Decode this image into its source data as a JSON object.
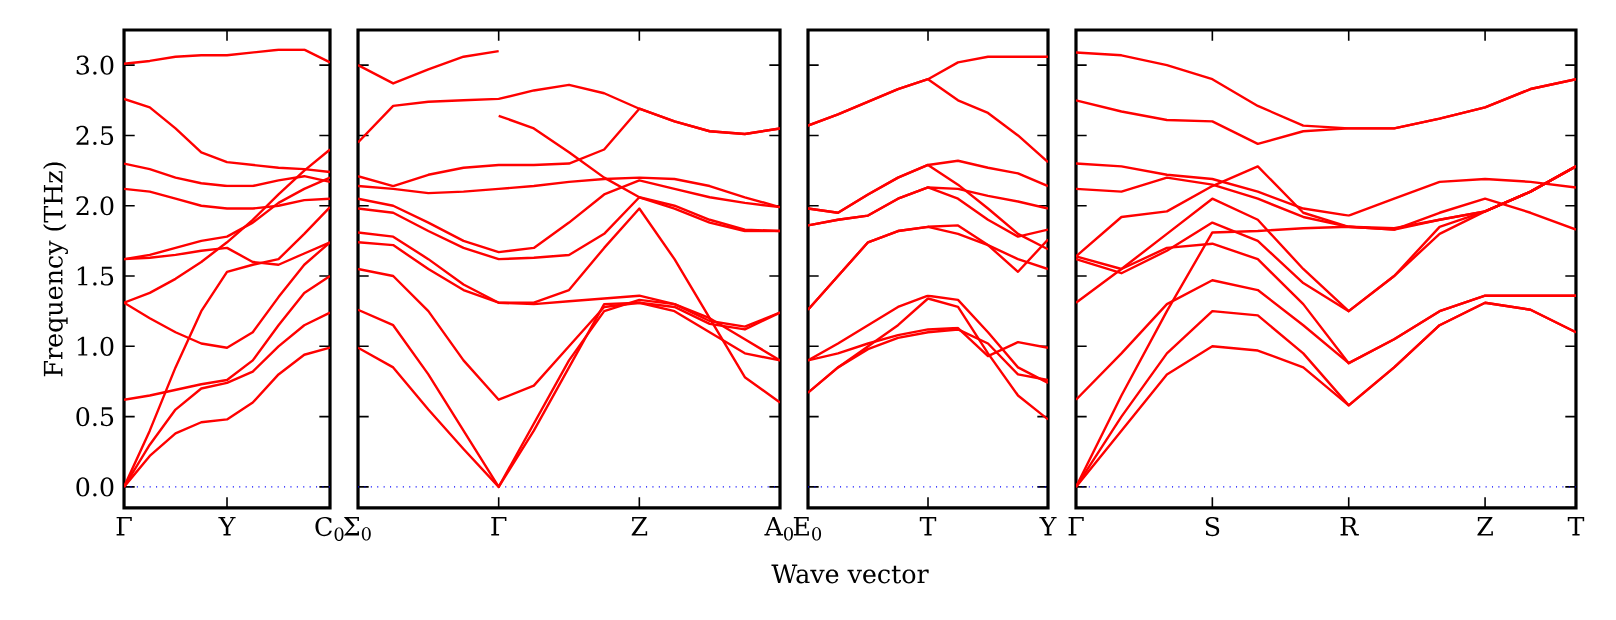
{
  "chart_data": [
    {
      "type": "line",
      "ylabel": "Frequency (THz)",
      "categories": [
        "Γ",
        null,
        null,
        null,
        "Y",
        null,
        null,
        null,
        "C$_{0}$"
      ],
      "ylim": [
        -0.15,
        3.25
      ],
      "yticks": [
        {
          "value": 0,
          "label": "0.0"
        },
        0.5,
        {
          "value": 1,
          "label": "1.0"
        },
        1.5,
        {
          "value": 2,
          "label": "2.0"
        },
        2.5,
        {
          "value": 3,
          "label": "3.0"
        }
      ],
      "ref_lines": [
        {
          "axis": "y",
          "value": 0,
          "color": "#0000ff",
          "line_style": "dotted"
        }
      ],
      "series": [
        {
          "color": "#ff0000",
          "values": [
            3.01,
            3.03,
            3.06,
            3.07,
            3.07,
            3.09,
            3.11,
            3.11,
            3.02
          ]
        },
        {
          "color": "#ff0000",
          "values": [
            2.76,
            2.7,
            2.55,
            2.38,
            2.31,
            2.29,
            2.27,
            2.26,
            2.24
          ]
        },
        {
          "color": "#ff0000",
          "values": [
            2.3,
            2.26,
            2.2,
            2.16,
            2.14,
            2.14,
            2.18,
            2.21,
            2.17
          ]
        },
        {
          "color": "#ff0000",
          "values": [
            2.12,
            2.1,
            2.05,
            2.0,
            1.98,
            1.98,
            2.0,
            2.04,
            2.05
          ]
        },
        {
          "color": "#ff0000",
          "values": [
            1.62,
            1.63,
            1.65,
            1.68,
            1.7,
            1.6,
            1.58,
            1.66,
            1.74
          ]
        },
        {
          "color": "#ff0000",
          "values": [
            1.62,
            1.65,
            1.7,
            1.75,
            1.78,
            1.88,
            2.02,
            2.12,
            2.2
          ]
        },
        {
          "color": "#ff0000",
          "values": [
            1.31,
            1.2,
            1.1,
            1.02,
            0.99,
            1.1,
            1.35,
            1.58,
            1.74
          ]
        },
        {
          "color": "#ff0000",
          "values": [
            1.31,
            1.38,
            1.48,
            1.6,
            1.74,
            1.9,
            2.08,
            2.25,
            2.4
          ]
        },
        {
          "color": "#ff0000",
          "values": [
            0.62,
            0.65,
            0.69,
            0.73,
            0.76,
            0.9,
            1.15,
            1.38,
            1.5
          ]
        },
        {
          "color": "#ff0000",
          "values": [
            0.0,
            0.3,
            0.55,
            0.7,
            0.74,
            0.82,
            1.0,
            1.15,
            1.24
          ]
        },
        {
          "color": "#ff0000",
          "values": [
            0.0,
            0.22,
            0.38,
            0.46,
            0.48,
            0.6,
            0.8,
            0.94,
            0.99
          ]
        },
        {
          "color": "#ff0000",
          "values": [
            0.0,
            0.4,
            0.85,
            1.25,
            1.53,
            1.58,
            1.62,
            1.8,
            1.99
          ]
        }
      ]
    },
    {
      "type": "line",
      "tick_labels": "x",
      "categories": [
        "Σ$_{0}$",
        null,
        null,
        null,
        "Γ",
        null,
        null,
        null,
        "Z",
        null,
        null,
        null,
        "A$_{0}$"
      ],
      "ylim": [
        -0.15,
        3.25
      ],
      "yticks": [
        0,
        0.5,
        1,
        1.5,
        2,
        2.5,
        3
      ],
      "ref_lines": [
        {
          "axis": "y",
          "value": 0,
          "color": "#0000ff",
          "line_style": "dotted"
        }
      ],
      "series": [
        {
          "color": "#ff0000",
          "values": [
            3.0,
            2.87,
            2.97,
            3.06,
            3.1,
            null,
            null,
            null,
            null,
            null,
            null,
            null,
            null
          ]
        },
        {
          "color": "#ff0000",
          "values": [
            null,
            null,
            null,
            null,
            2.64,
            2.55,
            2.38,
            2.2,
            2.06,
            1.98,
            1.88,
            1.82,
            1.82
          ]
        },
        {
          "color": "#ff0000",
          "values": [
            2.45,
            2.71,
            2.74,
            2.75,
            2.76,
            2.82,
            2.86,
            2.8,
            2.69,
            2.6,
            2.53,
            2.51,
            2.55
          ]
        },
        {
          "color": "#ff0000",
          "values": [
            2.21,
            2.14,
            2.22,
            2.27,
            2.29,
            2.29,
            2.3,
            2.4,
            2.69,
            2.6,
            2.53,
            2.51,
            2.55
          ]
        },
        {
          "color": "#ff0000",
          "values": [
            2.14,
            2.12,
            2.09,
            2.1,
            2.12,
            2.14,
            2.17,
            2.19,
            2.2,
            2.19,
            2.14,
            2.06,
            1.99
          ]
        },
        {
          "color": "#ff0000",
          "values": [
            2.05,
            2.0,
            1.88,
            1.75,
            1.67,
            1.7,
            1.88,
            2.08,
            2.18,
            2.12,
            2.06,
            2.02,
            1.99
          ]
        },
        {
          "color": "#ff0000",
          "values": [
            1.98,
            1.95,
            1.82,
            1.7,
            1.62,
            1.63,
            1.65,
            1.8,
            2.06,
            2.0,
            1.9,
            1.83,
            1.82
          ]
        },
        {
          "color": "#ff0000",
          "values": [
            1.74,
            1.72,
            1.55,
            1.4,
            1.31,
            1.31,
            1.4,
            1.7,
            1.98,
            1.62,
            1.2,
            0.78,
            0.6
          ]
        },
        {
          "color": "#ff0000",
          "values": [
            1.81,
            1.78,
            1.62,
            1.44,
            1.31,
            1.3,
            1.32,
            1.34,
            1.36,
            1.3,
            1.18,
            1.14,
            1.24
          ]
        },
        {
          "color": "#ff0000",
          "values": [
            1.55,
            1.5,
            1.25,
            0.9,
            0.62,
            0.72,
            1.0,
            1.28,
            1.31,
            1.25,
            1.1,
            0.95,
            0.9
          ]
        },
        {
          "color": "#ff0000",
          "values": [
            1.26,
            1.15,
            0.8,
            0.4,
            0.0,
            0.45,
            0.9,
            1.25,
            1.33,
            1.3,
            1.2,
            1.05,
            0.9
          ]
        },
        {
          "color": "#ff0000",
          "values": [
            0.99,
            0.85,
            0.55,
            0.27,
            0.0,
            0.4,
            0.85,
            1.3,
            1.31,
            1.28,
            1.16,
            1.12,
            1.24
          ]
        }
      ]
    },
    {
      "type": "line",
      "tick_labels": "x",
      "xlabel": "Wave vector",
      "categories": [
        "E$_{0}$",
        null,
        null,
        null,
        "T",
        null,
        null,
        null,
        "Y"
      ],
      "ylim": [
        -0.15,
        3.25
      ],
      "yticks": [
        0,
        0.5,
        1,
        1.5,
        2,
        2.5,
        3
      ],
      "ref_lines": [
        {
          "axis": "y",
          "value": 0,
          "color": "#0000ff",
          "line_style": "dotted"
        }
      ],
      "series": [
        {
          "color": "#ff0000",
          "values": [
            2.57,
            2.65,
            2.74,
            2.83,
            2.9,
            3.02,
            3.06,
            3.06,
            3.06
          ]
        },
        {
          "color": "#ff0000",
          "values": [
            2.57,
            2.65,
            2.74,
            2.83,
            2.9,
            2.75,
            2.66,
            2.5,
            2.31
          ]
        },
        {
          "color": "#ff0000",
          "values": [
            1.98,
            1.95,
            2.08,
            2.2,
            2.29,
            2.32,
            2.27,
            2.23,
            2.14
          ]
        },
        {
          "color": "#ff0000",
          "values": [
            1.98,
            1.95,
            2.08,
            2.2,
            2.29,
            2.15,
            1.98,
            1.8,
            1.69
          ]
        },
        {
          "color": "#ff0000",
          "values": [
            1.86,
            1.9,
            1.93,
            2.05,
            2.13,
            2.12,
            2.07,
            2.03,
            1.98
          ]
        },
        {
          "color": "#ff0000",
          "values": [
            1.86,
            1.9,
            1.93,
            2.05,
            2.13,
            2.05,
            1.9,
            1.78,
            1.83
          ]
        },
        {
          "color": "#ff0000",
          "values": [
            1.26,
            1.5,
            1.74,
            1.82,
            1.85,
            1.86,
            1.72,
            1.53,
            1.76
          ]
        },
        {
          "color": "#ff0000",
          "values": [
            1.26,
            1.5,
            1.74,
            1.82,
            1.85,
            1.8,
            1.72,
            1.62,
            1.55
          ]
        },
        {
          "color": "#ff0000",
          "values": [
            0.9,
            1.02,
            1.15,
            1.28,
            1.36,
            1.33,
            1.1,
            0.85,
            0.74
          ]
        },
        {
          "color": "#ff0000",
          "values": [
            0.9,
            0.95,
            1.02,
            1.08,
            1.12,
            1.13,
            0.93,
            1.03,
            0.99
          ]
        },
        {
          "color": "#ff0000",
          "values": [
            0.67,
            0.85,
            1.0,
            1.15,
            1.34,
            1.28,
            0.95,
            0.65,
            0.48
          ]
        },
        {
          "color": "#ff0000",
          "values": [
            0.67,
            0.85,
            0.98,
            1.06,
            1.1,
            1.12,
            1.02,
            0.8,
            0.76
          ]
        }
      ]
    },
    {
      "type": "line",
      "tick_labels": "x",
      "categories": [
        "Γ",
        null,
        null,
        "S",
        null,
        null,
        "R",
        null,
        null,
        "Z",
        null,
        "T"
      ],
      "ylim": [
        -0.15,
        3.25
      ],
      "yticks": [
        0,
        0.5,
        1,
        1.5,
        2,
        2.5,
        3
      ],
      "ref_lines": [
        {
          "axis": "y",
          "value": 0,
          "color": "#0000ff",
          "line_style": "dotted"
        }
      ],
      "series": [
        {
          "color": "#ff0000",
          "values": [
            3.09,
            3.07,
            3.0,
            2.9,
            2.71,
            2.57,
            2.55,
            2.55,
            2.62,
            2.7,
            2.83,
            2.9
          ]
        },
        {
          "color": "#ff0000",
          "values": [
            2.75,
            2.67,
            2.61,
            2.6,
            2.44,
            2.53,
            2.55,
            2.55,
            2.62,
            2.7,
            2.83,
            2.9
          ]
        },
        {
          "color": "#ff0000",
          "values": [
            2.3,
            2.28,
            2.22,
            2.19,
            2.1,
            1.98,
            1.93,
            2.05,
            2.17,
            2.19,
            2.17,
            2.13
          ]
        },
        {
          "color": "#ff0000",
          "values": [
            2.12,
            2.1,
            2.2,
            2.15,
            2.05,
            1.92,
            1.85,
            1.83,
            1.95,
            2.05,
            1.95,
            1.83
          ]
        },
        {
          "color": "#ff0000",
          "values": [
            1.64,
            1.92,
            1.96,
            2.14,
            2.28,
            1.95,
            1.85,
            1.83,
            1.9,
            1.96,
            2.1,
            2.28
          ]
        },
        {
          "color": "#ff0000",
          "values": [
            1.64,
            1.55,
            1.8,
            2.05,
            1.9,
            1.55,
            1.25,
            1.5,
            1.85,
            1.96,
            2.1,
            2.28
          ]
        },
        {
          "color": "#ff0000",
          "values": [
            1.62,
            1.52,
            1.68,
            1.88,
            1.75,
            1.45,
            1.25,
            1.5,
            1.8,
            1.96,
            2.1,
            2.28
          ]
        },
        {
          "color": "#ff0000",
          "values": [
            1.31,
            1.55,
            1.7,
            1.73,
            1.62,
            1.3,
            0.88,
            1.05,
            1.25,
            1.36,
            1.36,
            1.36
          ]
        },
        {
          "color": "#ff0000",
          "values": [
            0.62,
            0.95,
            1.3,
            1.47,
            1.4,
            1.15,
            0.88,
            1.05,
            1.25,
            1.36,
            1.36,
            1.36
          ]
        },
        {
          "color": "#ff0000",
          "values": [
            0.0,
            0.5,
            0.95,
            1.25,
            1.22,
            0.95,
            0.58,
            0.85,
            1.15,
            1.31,
            1.26,
            1.1
          ]
        },
        {
          "color": "#ff0000",
          "values": [
            0.0,
            0.4,
            0.8,
            1.0,
            0.97,
            0.85,
            0.58,
            0.85,
            1.15,
            1.31,
            1.26,
            1.1
          ]
        },
        {
          "color": "#ff0000",
          "values": [
            0.0,
            0.65,
            1.25,
            1.81,
            1.82,
            1.84,
            1.85,
            1.84,
            1.9,
            1.96,
            2.1,
            2.28
          ]
        }
      ]
    }
  ]
}
